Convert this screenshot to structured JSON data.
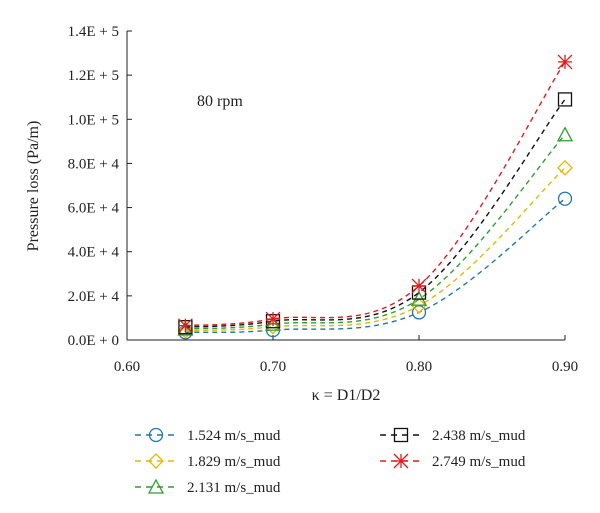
{
  "chart_data": {
    "type": "line",
    "title": "",
    "annotation": "80 rpm",
    "xlabel": "κ = D1/D2",
    "ylabel": "Pressure loss (Pa/m)",
    "xlim": [
      0.6,
      0.9
    ],
    "ylim": [
      0,
      140000
    ],
    "x_ticks": [
      0.6,
      0.7,
      0.8,
      0.9
    ],
    "x_tick_labels": [
      "0.60",
      "0.70",
      "0.80",
      "0.90"
    ],
    "y_ticks": [
      0,
      20000,
      40000,
      60000,
      80000,
      100000,
      120000,
      140000
    ],
    "y_tick_labels": [
      "0.0E + 0",
      "2.0E + 4",
      "4.0E + 4",
      "6.0E + 4",
      "8.0E + 4",
      "1.0E + 5",
      "1.2E + 5",
      "1.4E + 5"
    ],
    "grid": false,
    "legend_position": "bottom",
    "x": [
      0.64,
      0.7,
      0.8,
      0.9
    ],
    "series": [
      {
        "name": "1.524 m/s_mud",
        "color": "#1f77b4",
        "marker": "circle",
        "values": [
          3500,
          4500,
          12500,
          64000
        ]
      },
      {
        "name": "1.829 m/s_mud",
        "color": "#e6b800",
        "marker": "diamond",
        "values": [
          4200,
          6000,
          15500,
          78000
        ]
      },
      {
        "name": "2.131 m/s_mud",
        "color": "#2ca02c",
        "marker": "triangle",
        "values": [
          5000,
          7200,
          18500,
          93000
        ]
      },
      {
        "name": "2.438 m/s_mud",
        "color": "#111111",
        "marker": "square",
        "values": [
          5800,
          8500,
          21500,
          109000
        ]
      },
      {
        "name": "2.749 m/s_mud",
        "color": "#e31a1c",
        "marker": "asterisk",
        "values": [
          6500,
          9500,
          24500,
          126000
        ]
      }
    ]
  }
}
